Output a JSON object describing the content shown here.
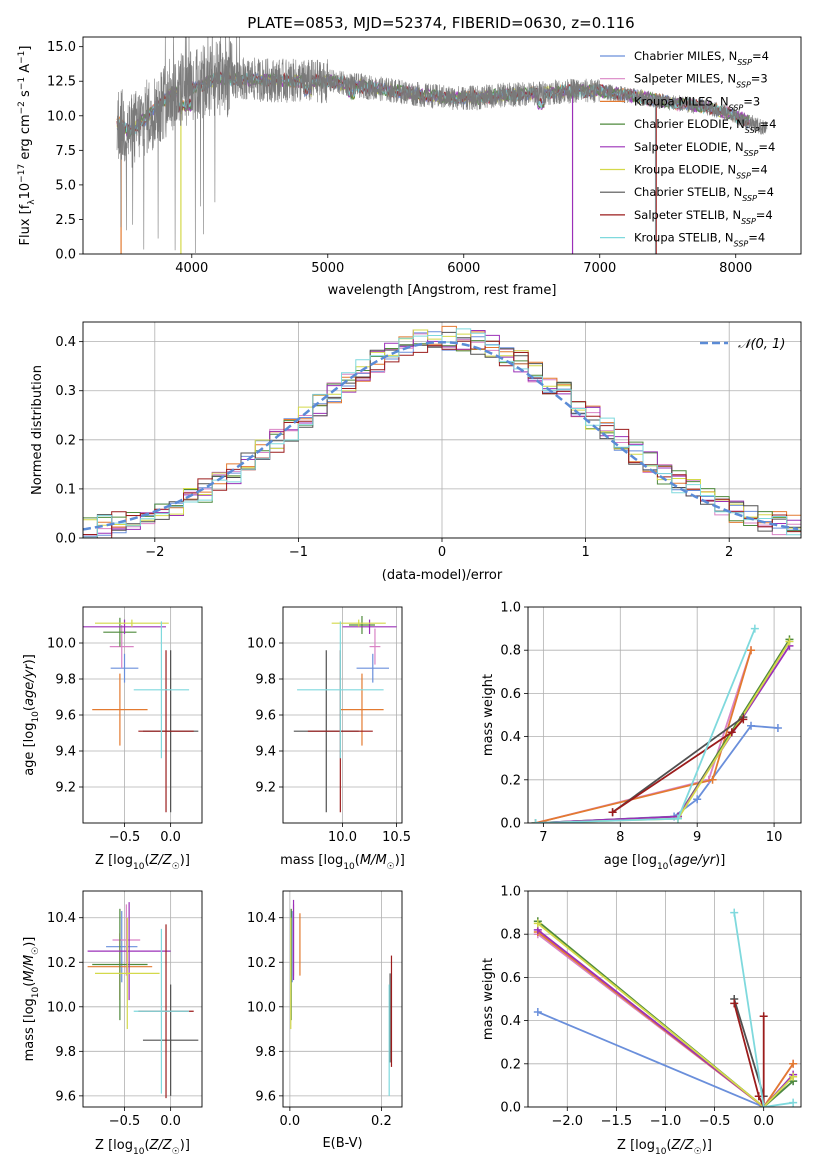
{
  "figure_title": "PLATE=0853, MJD=52374, FIBERID=0630, z=0.116",
  "models": [
    {
      "name": "Chabrier MILES, N",
      "sub": "SSP",
      "tail": "=4",
      "color": "#6a8fdb"
    },
    {
      "name": "Salpeter MILES, N",
      "sub": "SSP",
      "tail": "=3",
      "color": "#d984c5"
    },
    {
      "name": "Kroupa MILES, N",
      "sub": "SSP",
      "tail": "=3",
      "color": "#e37a30"
    },
    {
      "name": "Chabrier ELODIE, N",
      "sub": "SSP",
      "tail": "=4",
      "color": "#4f8a3c"
    },
    {
      "name": "Salpeter ELODIE, N",
      "sub": "SSP",
      "tail": "=4",
      "color": "#9b30b8"
    },
    {
      "name": "Kroupa ELODIE, N",
      "sub": "SSP",
      "tail": "=4",
      "color": "#d4d94a"
    },
    {
      "name": "Chabrier STELIB, N",
      "sub": "SSP",
      "tail": "=4",
      "color": "#505050"
    },
    {
      "name": "Salpeter STELIB, N",
      "sub": "SSP",
      "tail": "=4",
      "color": "#9b1c1c"
    },
    {
      "name": "Kroupa STELIB, N",
      "sub": "SSP",
      "tail": "=4",
      "color": "#7fd9dd"
    }
  ],
  "chart_data": [
    {
      "id": "spectrum",
      "type": "line",
      "title": "PLATE=0853, MJD=52374, FIBERID=0630, z=0.116",
      "xlabel": "wavelength [Angstrom, rest frame]",
      "ylabel_parts": [
        "Flux [f",
        "λ",
        "10",
        "−17",
        " erg cm",
        "−2",
        " s",
        "−1",
        " A",
        "−1",
        "]"
      ],
      "xlim": [
        3200,
        8480
      ],
      "ylim": [
        0,
        15.7
      ],
      "xticks": [
        "4000",
        "5000",
        "6000",
        "7000",
        "8000"
      ],
      "yticks": [
        "0.0",
        "2.5",
        "5.0",
        "7.5",
        "10.0",
        "12.5",
        "15.0"
      ],
      "data_wavelength_range": [
        3450,
        8230
      ],
      "continuum": [
        [
          3450,
          9.5
        ],
        [
          3550,
          8.8
        ],
        [
          3700,
          10.2
        ],
        [
          3850,
          11.6
        ],
        [
          4000,
          12.0
        ],
        [
          4200,
          12.7
        ],
        [
          4500,
          12.6
        ],
        [
          4800,
          12.5
        ],
        [
          5000,
          12.5
        ],
        [
          5200,
          12.2
        ],
        [
          5500,
          11.8
        ],
        [
          5700,
          11.5
        ],
        [
          5900,
          11.3
        ],
        [
          6100,
          11.3
        ],
        [
          6300,
          11.5
        ],
        [
          6500,
          11.6
        ],
        [
          6800,
          11.8
        ],
        [
          7000,
          11.8
        ],
        [
          7200,
          11.5
        ],
        [
          7500,
          11.0
        ],
        [
          7800,
          10.6
        ],
        [
          8000,
          10.0
        ],
        [
          8230,
          9.0
        ]
      ],
      "legend_position": "top-right"
    },
    {
      "id": "residuals",
      "type": "histogram",
      "xlabel": "(data-model)/error",
      "ylabel": "Normed distribution",
      "xlim": [
        -2.5,
        2.5
      ],
      "ylim": [
        0,
        0.44
      ],
      "xticks": [
        "−2",
        "−1",
        "0",
        "1",
        "2"
      ],
      "yticks": [
        "0.0",
        "0.1",
        "0.2",
        "0.3",
        "0.4"
      ],
      "reference_curve": "normal(0,1)",
      "legend_label": "𝒩(0, 1)",
      "bin_width": 0.1,
      "grid": true
    },
    {
      "id": "age_vs_Z",
      "type": "errorbar",
      "xlabel": "Z [log10(Z/Z☉)]",
      "ylabel": "age [log10(age/yr)]",
      "xlim": [
        -0.95,
        0.34
      ],
      "ylim": [
        9.0,
        10.2
      ],
      "xticks": [
        "−0.5",
        "0.0"
      ],
      "yticks": [
        "9.2",
        "9.4",
        "9.6",
        "9.8",
        "10.0"
      ],
      "points": [
        {
          "model": 0,
          "x": -0.5,
          "xerr": 0.15,
          "y": 9.86,
          "yerr": 0.08
        },
        {
          "model": 1,
          "x": -0.53,
          "xerr": 0.13,
          "y": 9.98,
          "yerr": 0.12
        },
        {
          "model": 2,
          "x": -0.55,
          "xerr": 0.3,
          "y": 9.63,
          "yerr": 0.2
        },
        {
          "model": 3,
          "x": -0.55,
          "xerr": 0.18,
          "y": 10.06,
          "yerr": 0.08
        },
        {
          "model": 4,
          "x": -0.5,
          "xerr": 0.45,
          "y": 10.09,
          "yerr": 0.04
        },
        {
          "model": 5,
          "x": -0.42,
          "xerr": 0.4,
          "y": 10.11,
          "yerr": 0.02
        },
        {
          "model": 6,
          "x": -0.0,
          "xerr": 0.3,
          "y": 9.51,
          "yerr": 0.45
        },
        {
          "model": 7,
          "x": -0.05,
          "xerr": 0.3,
          "y": 9.51,
          "yerr": 0.45
        },
        {
          "model": 8,
          "x": -0.1,
          "xerr": 0.3,
          "y": 9.74,
          "yerr": 0.38
        }
      ]
    },
    {
      "id": "age_vs_mass",
      "type": "errorbar",
      "xlabel": "mass [log10(M/M☉)]",
      "xlim": [
        9.45,
        10.55
      ],
      "ylim": [
        9.0,
        10.2
      ],
      "xticks": [
        "10.0",
        "10.5"
      ],
      "yticks": [
        "9.2",
        "9.4",
        "9.6",
        "9.8",
        "10.0"
      ],
      "points": [
        {
          "model": 0,
          "x": 10.28,
          "xerr": 0.15,
          "y": 9.86,
          "yerr": 0.08
        },
        {
          "model": 1,
          "x": 10.3,
          "xerr": 0.05,
          "y": 9.98,
          "yerr": 0.1
        },
        {
          "model": 2,
          "x": 10.18,
          "xerr": 0.2,
          "y": 9.63,
          "yerr": 0.2
        },
        {
          "model": 3,
          "x": 10.18,
          "xerr": 0.12,
          "y": 10.1,
          "yerr": 0.05
        },
        {
          "model": 4,
          "x": 10.25,
          "xerr": 0.25,
          "y": 10.09,
          "yerr": 0.04
        },
        {
          "model": 5,
          "x": 10.15,
          "xerr": 0.25,
          "y": 10.11,
          "yerr": 0.02
        },
        {
          "model": 6,
          "x": 9.85,
          "xerr": 0.3,
          "y": 9.51,
          "yerr": 0.45
        },
        {
          "model": 7,
          "x": 9.98,
          "xerr": 0.3,
          "y": 9.51,
          "yerr": 0.45
        },
        {
          "model": 8,
          "x": 9.98,
          "xerr": 0.4,
          "y": 9.74,
          "yerr": 0.38
        }
      ]
    },
    {
      "id": "massweight_vs_age",
      "type": "line",
      "xlabel": "age [log10(age/yr)]",
      "ylabel": "mass weight",
      "xlim": [
        6.8,
        10.35
      ],
      "ylim": [
        0,
        1.0
      ],
      "xticks": [
        "7",
        "8",
        "9",
        "10"
      ],
      "yticks": [
        "0.0",
        "0.2",
        "0.4",
        "0.6",
        "0.8",
        "1.0"
      ],
      "series": [
        {
          "model": 0,
          "x": [
            6.9,
            8.7,
            9.0,
            9.7,
            10.05
          ],
          "y": [
            0.0,
            0.03,
            0.11,
            0.45,
            0.44
          ]
        },
        {
          "model": 1,
          "x": [
            6.9,
            9.15,
            9.7
          ],
          "y": [
            0.0,
            0.2,
            0.8
          ]
        },
        {
          "model": 2,
          "x": [
            6.9,
            9.2,
            9.7
          ],
          "y": [
            0.0,
            0.2,
            0.8
          ]
        },
        {
          "model": 3,
          "x": [
            6.9,
            8.75,
            10.2
          ],
          "y": [
            0.0,
            0.03,
            0.85
          ]
        },
        {
          "model": 4,
          "x": [
            6.9,
            8.75,
            10.2
          ],
          "y": [
            0.0,
            0.03,
            0.82
          ]
        },
        {
          "model": 5,
          "x": [
            6.9,
            8.75,
            10.2
          ],
          "y": [
            0.0,
            0.02,
            0.84
          ]
        },
        {
          "model": 6,
          "x": [
            7.9,
            9.6
          ],
          "y": [
            0.05,
            0.49
          ]
        },
        {
          "model": 7,
          "x": [
            7.9,
            9.45,
            9.6
          ],
          "y": [
            0.05,
            0.42,
            0.48
          ]
        },
        {
          "model": 8,
          "x": [
            6.9,
            8.75,
            9.75
          ],
          "y": [
            0.0,
            0.02,
            0.9
          ]
        }
      ]
    },
    {
      "id": "mass_vs_Z",
      "type": "errorbar",
      "xlabel": "Z [log10(Z/Z☉)]",
      "ylabel": "mass [log10(M/M☉)]",
      "xlim": [
        -0.95,
        0.34
      ],
      "ylim": [
        9.55,
        10.52
      ],
      "xticks": [
        "−0.5",
        "0.0"
      ],
      "yticks": [
        "9.6",
        "9.8",
        "10.0",
        "10.2",
        "10.4"
      ],
      "points": [
        {
          "model": 0,
          "x": -0.53,
          "xerr": 0.17,
          "y": 10.27,
          "yerr": 0.16
        },
        {
          "model": 1,
          "x": -0.48,
          "xerr": 0.15,
          "y": 10.3,
          "yerr": 0.16
        },
        {
          "model": 2,
          "x": -0.55,
          "xerr": 0.35,
          "y": 10.18,
          "yerr": 0.15
        },
        {
          "model": 3,
          "x": -0.55,
          "xerr": 0.3,
          "y": 10.19,
          "yerr": 0.25
        },
        {
          "model": 4,
          "x": -0.45,
          "xerr": 0.45,
          "y": 10.25,
          "yerr": 0.22
        },
        {
          "model": 5,
          "x": -0.47,
          "xerr": 0.35,
          "y": 10.15,
          "yerr": 0.25
        },
        {
          "model": 6,
          "x": -0.0,
          "xerr": 0.3,
          "y": 9.85,
          "yerr": 0.25
        },
        {
          "model": 7,
          "x": -0.05,
          "xerr": 0.3,
          "y": 9.98,
          "yerr": 0.39
        },
        {
          "model": 8,
          "x": -0.1,
          "xerr": 0.3,
          "y": 9.98,
          "yerr": 0.37
        }
      ]
    },
    {
      "id": "mass_vs_ebv",
      "type": "errorbar",
      "xlabel": "E(B-V)",
      "xlim": [
        -0.015,
        0.245
      ],
      "ylim": [
        9.55,
        10.52
      ],
      "xticks": [
        "0.0",
        "0.2"
      ],
      "yticks": [
        "9.6",
        "9.8",
        "10.0",
        "10.2",
        "10.4"
      ],
      "points": [
        {
          "model": 0,
          "x": 0.005,
          "xerr": 0,
          "y": 10.27,
          "yerr": 0.16
        },
        {
          "model": 1,
          "x": 0.008,
          "xerr": 0,
          "y": 10.3,
          "yerr": 0.16
        },
        {
          "model": 2,
          "x": 0.022,
          "xerr": 0,
          "y": 10.28,
          "yerr": 0.14
        },
        {
          "model": 3,
          "x": 0.003,
          "xerr": 0,
          "y": 10.19,
          "yerr": 0.25
        },
        {
          "model": 4,
          "x": 0.008,
          "xerr": 0,
          "y": 10.3,
          "yerr": 0.18
        },
        {
          "model": 5,
          "x": 0.002,
          "xerr": 0,
          "y": 10.15,
          "yerr": 0.25
        },
        {
          "model": 6,
          "x": 0.219,
          "xerr": 0,
          "y": 9.95,
          "yerr": 0.2
        },
        {
          "model": 7,
          "x": 0.222,
          "xerr": 0,
          "y": 9.98,
          "yerr": 0.25
        },
        {
          "model": 8,
          "x": 0.217,
          "xerr": 0,
          "y": 9.85,
          "yerr": 0.25
        }
      ]
    },
    {
      "id": "massweight_vs_Z",
      "type": "line",
      "xlabel": "Z [log10(Z/Z☉)]",
      "ylabel": "mass weight",
      "xlim": [
        -2.4,
        0.38
      ],
      "ylim": [
        0,
        1.0
      ],
      "xticks": [
        "−2.0",
        "−1.5",
        "−1.0",
        "−0.5",
        "0.0"
      ],
      "yticks": [
        "0.0",
        "0.2",
        "0.4",
        "0.6",
        "0.8",
        "1.0"
      ],
      "series": [
        {
          "model": 0,
          "x": [
            -2.3,
            0.0,
            0.3
          ],
          "y": [
            0.44,
            0.0,
            0.12
          ]
        },
        {
          "model": 1,
          "x": [
            -2.3,
            0.0,
            0.3
          ],
          "y": [
            0.8,
            0.0,
            0.2
          ]
        },
        {
          "model": 2,
          "x": [
            -2.3,
            0.0,
            0.3
          ],
          "y": [
            0.81,
            0.0,
            0.2
          ]
        },
        {
          "model": 3,
          "x": [
            -2.3,
            0.0,
            0.3
          ],
          "y": [
            0.86,
            0.0,
            0.12
          ]
        },
        {
          "model": 4,
          "x": [
            -2.3,
            0.0,
            0.3
          ],
          "y": [
            0.82,
            0.0,
            0.15
          ]
        },
        {
          "model": 5,
          "x": [
            -2.3,
            0.0,
            0.3
          ],
          "y": [
            0.85,
            0.0,
            0.14
          ]
        },
        {
          "model": 6,
          "x": [
            -0.3,
            0.0
          ],
          "y": [
            0.5,
            0.05
          ]
        },
        {
          "model": 7,
          "x": [
            -0.3,
            -0.05,
            0.0,
            0.0
          ],
          "y": [
            0.48,
            0.05,
            0.0,
            0.42
          ]
        },
        {
          "model": 8,
          "x": [
            -0.3,
            0.0,
            0.3
          ],
          "y": [
            0.9,
            0.0,
            0.02
          ]
        }
      ]
    }
  ]
}
